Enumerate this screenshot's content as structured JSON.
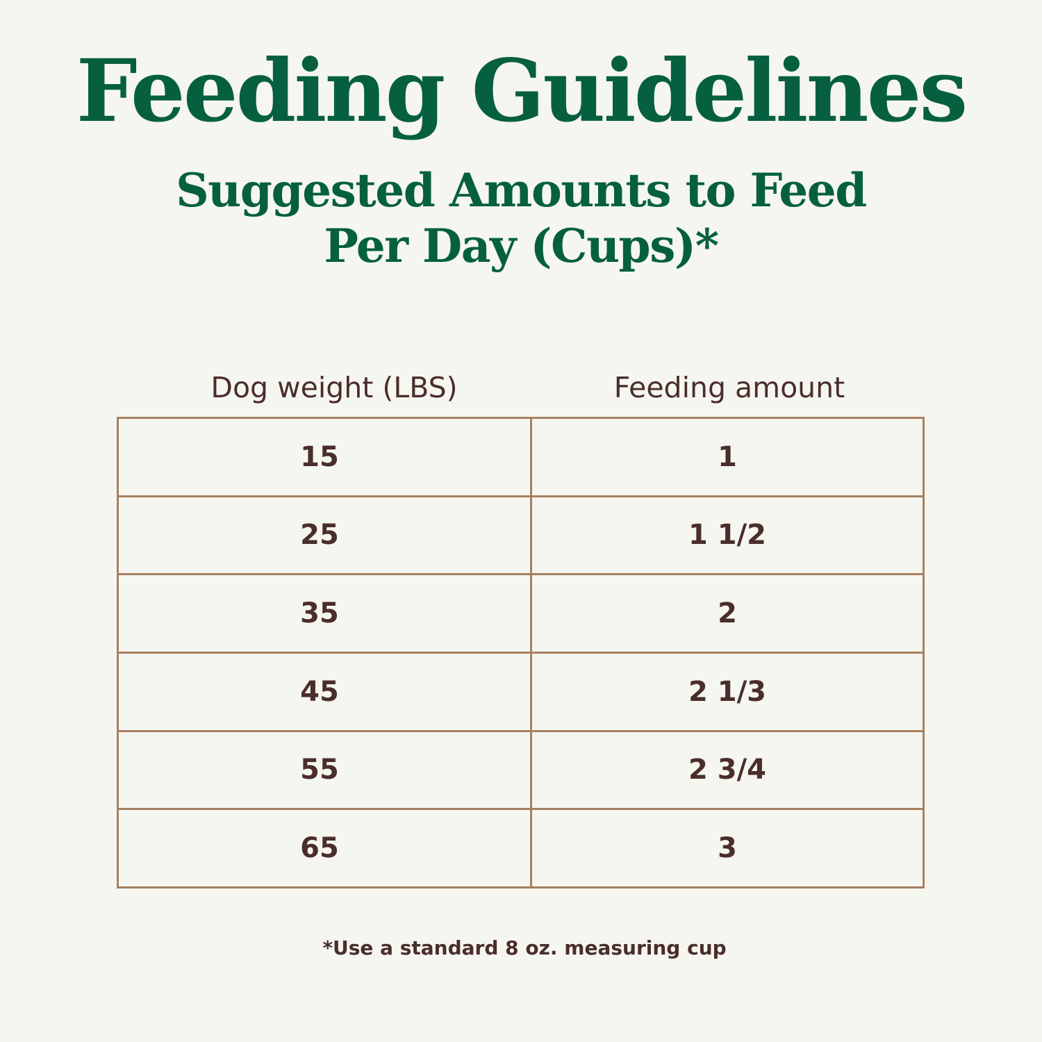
{
  "title": "Feeding Guidelines",
  "subtitle_line1": "Suggested Amounts to Feed",
  "subtitle_line2": "Per Day (Cups)*",
  "table": {
    "headers": [
      "Dog weight (LBS)",
      "Feeding amount"
    ],
    "rows": [
      [
        "15",
        "1"
      ],
      [
        "25",
        "1 1/2"
      ],
      [
        "35",
        "2"
      ],
      [
        "45",
        "2 1/3"
      ],
      [
        "55",
        "2 3/4"
      ],
      [
        "65",
        "3"
      ]
    ]
  },
  "footnote": "*Use a standard 8 oz. measuring cup",
  "colors": {
    "title": "#066040",
    "text": "#4a2e2b",
    "border": "#a8805e",
    "background": "#f6f6f1"
  }
}
